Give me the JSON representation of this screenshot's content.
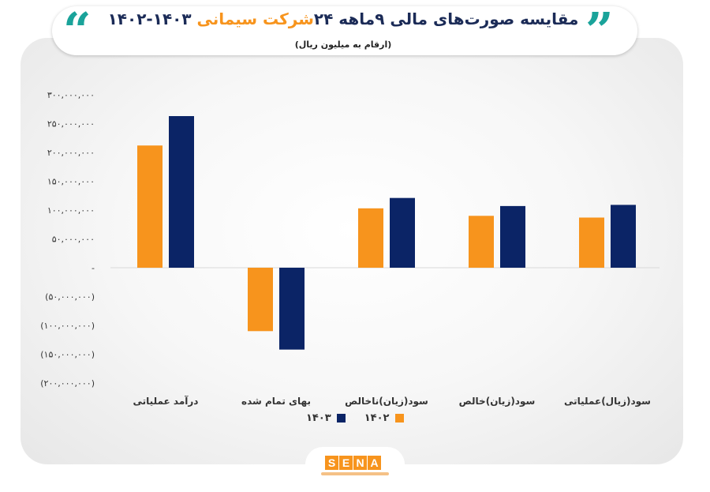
{
  "header": {
    "title_part1": "مقایسه صورت‌های مالی ۹ماهه ۲۴",
    "title_accent": "شرکت سیمانی",
    "title_part2": "۱۴۰۳-۱۴۰۲",
    "subtitle": "(ارقام به میلیون ریال)"
  },
  "logo": {
    "text": "SENA"
  },
  "colors": {
    "series_1402": "#f7941d",
    "series_1403": "#0b2466",
    "accent": "#1aa39a"
  },
  "chart_data": {
    "type": "bar",
    "categories": [
      "درآمد عملیاتی",
      "بهای تمام شده",
      "سود(زیان)ناخالص",
      "سود(زیان)خالص",
      "سود(زیال)عملیاتی"
    ],
    "series": [
      {
        "name": "۱۴۰۲",
        "values": [
          212000000,
          -110000000,
          103000000,
          90000000,
          87000000
        ]
      },
      {
        "name": "۱۴۰۳",
        "values": [
          263000000,
          -142000000,
          121000000,
          107000000,
          109000000
        ]
      }
    ],
    "ylim": [
      -200000000,
      300000000
    ],
    "yticks": [
      {
        "value": 300000000,
        "label": "۳۰۰,۰۰۰,۰۰۰"
      },
      {
        "value": 250000000,
        "label": "۲۵۰,۰۰۰,۰۰۰"
      },
      {
        "value": 200000000,
        "label": "۲۰۰,۰۰۰,۰۰۰"
      },
      {
        "value": 150000000,
        "label": "۱۵۰,۰۰۰,۰۰۰"
      },
      {
        "value": 100000000,
        "label": "۱۰۰,۰۰۰,۰۰۰"
      },
      {
        "value": 50000000,
        "label": "۵۰,۰۰۰,۰۰۰"
      },
      {
        "value": 0,
        "label": "-"
      },
      {
        "value": -50000000,
        "label": "(۵۰,۰۰۰,۰۰۰)"
      },
      {
        "value": -100000000,
        "label": "(۱۰۰,۰۰۰,۰۰۰)"
      },
      {
        "value": -150000000,
        "label": "(۱۵۰,۰۰۰,۰۰۰)"
      },
      {
        "value": -200000000,
        "label": "(۲۰۰,۰۰۰,۰۰۰)"
      }
    ],
    "grid": false,
    "legend": "bottom-center"
  }
}
